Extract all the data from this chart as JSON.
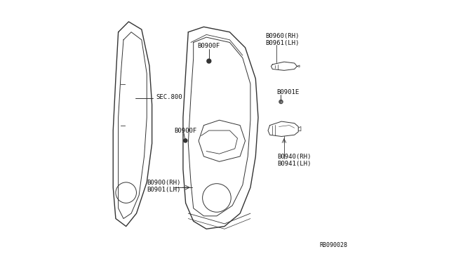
{
  "bg_color": "#ffffff",
  "line_color": "#333333",
  "text_color": "#111111",
  "fig_width": 6.4,
  "fig_height": 3.72,
  "dpi": 100,
  "labels": {
    "sec800": "SEC.800",
    "b0900F_top": "B0900F",
    "b0900F_mid": "B0900F",
    "b0900_rh": "B0900(RH)",
    "b0901_lh": "B0901(LH)",
    "b0960_rh": "B0960(RH)",
    "b0961_lh": "B0961(LH)",
    "b0901E": "B0901E",
    "b0940_rh": "B0940(RH)",
    "b0941_lh": "B0941(LH)",
    "ref_code": "RB090028"
  },
  "font_size_labels": 6.5,
  "font_size_ref": 6.0
}
